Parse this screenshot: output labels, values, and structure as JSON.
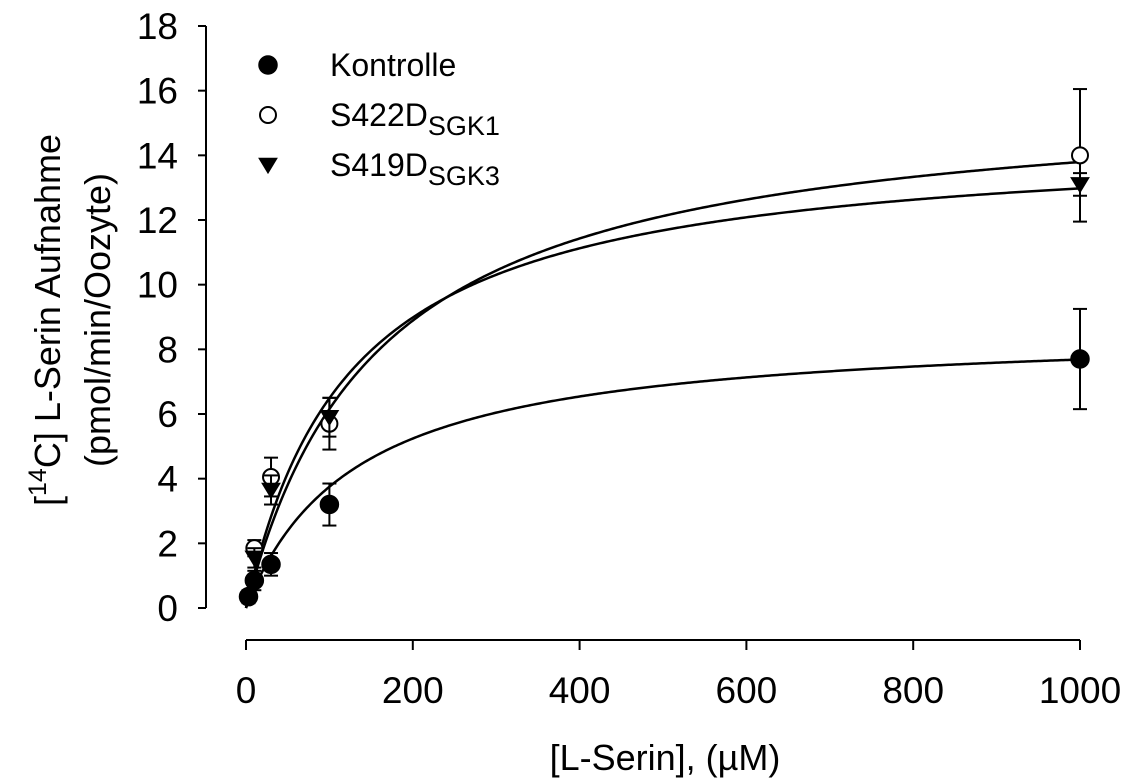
{
  "chart_data": {
    "type": "scatter",
    "xlabel": "[L-Serin], (µM)",
    "ylabel_line1": {
      "prefix": "[",
      "sup": "14",
      "rest": "C] L-Serin Aufnahme"
    },
    "ylabel_line2": "(pmol/min/Oozyte)",
    "xlim": [
      0,
      1000
    ],
    "ylim": [
      0,
      18
    ],
    "xticks": [
      0,
      200,
      400,
      600,
      800,
      1000
    ],
    "yticks": [
      0,
      2,
      4,
      6,
      8,
      10,
      12,
      14,
      16,
      18
    ],
    "grid": false,
    "legend_position": "top-left",
    "series": [
      {
        "name": "Kontrolle",
        "name_main": "Kontrolle",
        "name_sub": "",
        "marker": "circle-filled",
        "color": "#000000",
        "x": [
          3,
          10,
          30,
          100,
          1000
        ],
        "y": [
          0.35,
          0.85,
          1.35,
          3.2,
          7.7
        ],
        "err": [
          0.2,
          0.3,
          0.35,
          0.65,
          1.55
        ],
        "fit": {
          "model": "michaelis-menten",
          "vmax": 8.7,
          "km": 132
        }
      },
      {
        "name": "S422DSGK1",
        "name_main": "S422D",
        "name_sub": "SGK1",
        "marker": "circle-open",
        "color": "#000000",
        "x": [
          10,
          30,
          100,
          1000
        ],
        "y": [
          1.85,
          4.05,
          5.7,
          14.0
        ],
        "err": [
          0.25,
          0.6,
          0.8,
          2.05
        ],
        "fit": {
          "model": "michaelis-menten",
          "vmax": 16.0,
          "km": 160
        }
      },
      {
        "name": "S419DSGK3",
        "name_main": "S419D",
        "name_sub": "SGK3",
        "marker": "triangle-down-filled",
        "color": "#000000",
        "x": [
          10,
          30,
          100,
          1000
        ],
        "y": [
          1.55,
          3.65,
          5.9,
          13.1
        ],
        "err": [
          0.3,
          0.45,
          0.6,
          0.35
        ],
        "fit": {
          "model": "michaelis-menten",
          "vmax": 14.6,
          "km": 125
        }
      }
    ]
  }
}
